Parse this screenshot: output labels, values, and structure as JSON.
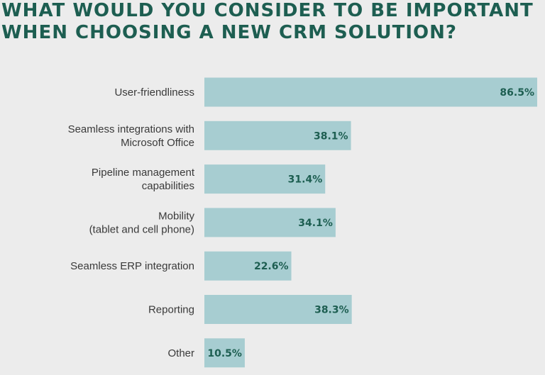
{
  "chart_data": {
    "type": "bar",
    "orientation": "horizontal",
    "title": "WHAT WOULD YOU CONSIDER TO BE IMPORTANT\nWHEN CHOOSING A NEW CRM SOLUTION?",
    "categories": [
      "User-friendliness",
      "Seamless integrations with\nMicrosoft Office",
      "Pipeline management\ncapabilities",
      "Mobility\n(tablet and cell phone)",
      "Seamless ERP integration",
      "Reporting",
      "Other"
    ],
    "values": [
      86.5,
      38.1,
      31.4,
      34.1,
      22.6,
      38.3,
      10.5
    ],
    "value_labels": [
      "86.5%",
      "38.1%",
      "31.4%",
      "34.1%",
      "22.6%",
      "38.3%",
      "10.5%"
    ],
    "xlim": [
      0,
      86.5
    ],
    "grid": false,
    "legend": "none",
    "colors": {
      "bar": "#a7cdd1",
      "value_text": "#1d5e51",
      "title": "#1d5e51",
      "label": "#3a3a3a",
      "background": "#ececec"
    }
  }
}
